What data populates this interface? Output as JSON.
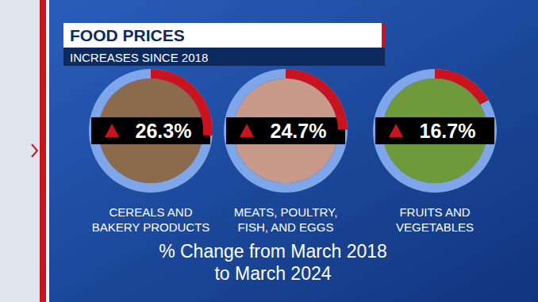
{
  "chart_data": {
    "type": "gauge",
    "title": "FOOD PRICES",
    "subtitle": "INCREASES SINCE 2018",
    "note": "% Change from March 2018\nto March 2024",
    "categories": [
      "CEREALS AND\nBAKERY PRODUCTS",
      "MEATS, POULTRY,\nFISH, AND EGGS",
      "FRUITS AND\nVEGETABLES"
    ],
    "values": [
      26.3,
      24.7,
      16.7
    ],
    "value_labels": [
      "26.3%",
      "24.7%",
      "16.7%"
    ],
    "color": "#c8141e",
    "ylim": [
      0,
      100
    ],
    "tick_labels": false,
    "data_labels": true
  }
}
